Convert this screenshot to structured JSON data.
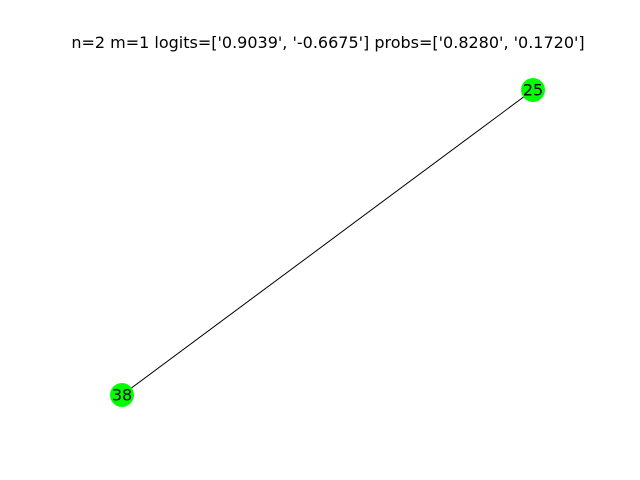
{
  "title": "n=2 m=1 logits=['0.9039', '-0.6675'] probs=['0.8280', '0.1720']",
  "graph": {
    "node_color": "#00ff00",
    "edge_color": "#000000",
    "nodes": [
      {
        "id": "25",
        "label": "25"
      },
      {
        "id": "38",
        "label": "38"
      }
    ],
    "edges": [
      {
        "source": "25",
        "target": "38"
      }
    ]
  }
}
